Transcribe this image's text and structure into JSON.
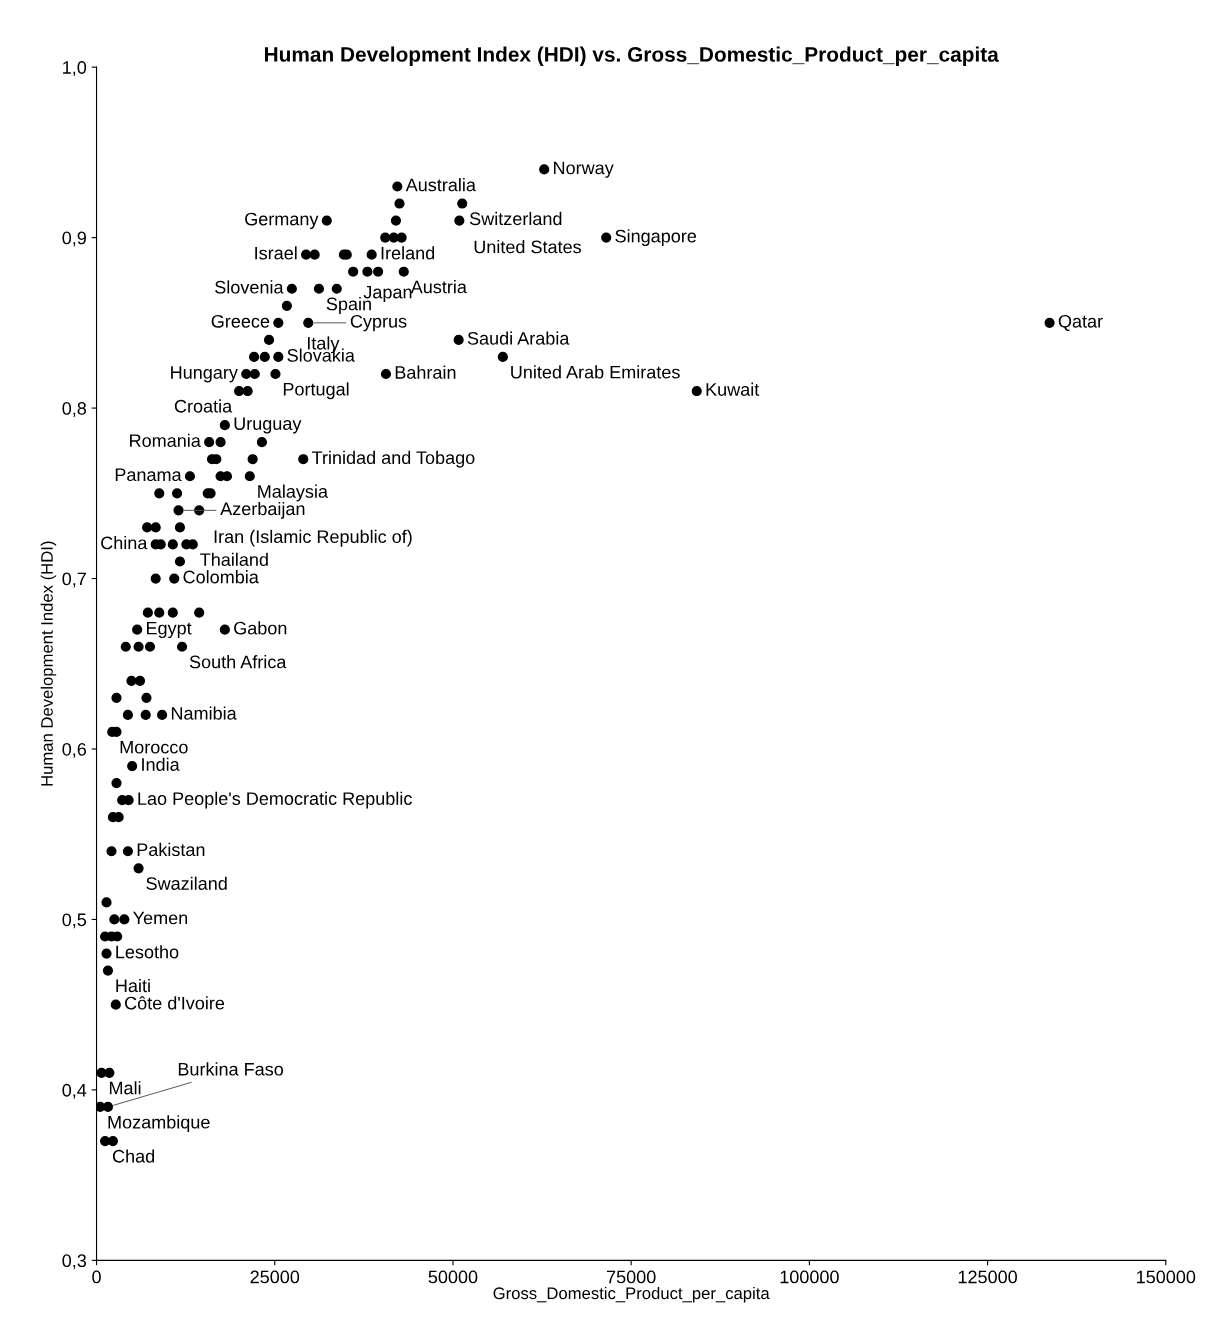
{
  "chart_data": {
    "type": "scatter",
    "title": "Human Development Index (HDI) vs. Gross_Domestic_Product_per_capita",
    "xlabel": "Gross_Domestic_Product_per_capita",
    "ylabel": "Human Development Index (HDI)",
    "series": [
      {
        "color": "#000000",
        "x": [
          62800,
          42200,
          42500,
          51300,
          32300,
          42000,
          50900,
          40500,
          41700,
          42800,
          71500,
          29400,
          30600,
          34700,
          35100,
          38600,
          36000,
          38000,
          39500,
          43100,
          27400,
          31200,
          33700,
          26700,
          25500,
          29700,
          133700,
          24200,
          50800,
          22100,
          23600,
          25500,
          57000,
          21000,
          22200,
          25100,
          40600,
          20000,
          21200,
          84200,
          18000,
          15800,
          17400,
          23200,
          16200,
          16800,
          21900,
          29000,
          13100,
          17400,
          18300,
          21500,
          8800,
          11300,
          15600,
          16000,
          11500,
          14400,
          7100,
          8300,
          11700,
          8300,
          9000,
          10700,
          12600,
          13500,
          11700,
          8300,
          10900,
          7200,
          8800,
          10700,
          14400,
          5700,
          18000,
          4100,
          5900,
          7500,
          12000,
          4900,
          6100,
          2800,
          7000,
          4400,
          6900,
          9200,
          2200,
          2800,
          5000,
          2800,
          3600,
          4500,
          2300,
          3100,
          2100,
          4400,
          5900,
          1400,
          2500,
          3900,
          1200,
          2100,
          2900,
          1400,
          1600,
          2700,
          700,
          1800,
          500,
          1600,
          1200,
          2300
        ],
        "values": [
          0.94,
          0.93,
          0.92,
          0.92,
          0.91,
          0.91,
          0.91,
          0.9,
          0.9,
          0.9,
          0.9,
          0.89,
          0.89,
          0.89,
          0.89,
          0.89,
          0.88,
          0.88,
          0.88,
          0.88,
          0.87,
          0.87,
          0.87,
          0.86,
          0.85,
          0.85,
          0.85,
          0.84,
          0.84,
          0.83,
          0.83,
          0.83,
          0.83,
          0.82,
          0.82,
          0.82,
          0.82,
          0.81,
          0.81,
          0.81,
          0.79,
          0.78,
          0.78,
          0.78,
          0.77,
          0.77,
          0.77,
          0.77,
          0.76,
          0.76,
          0.76,
          0.76,
          0.75,
          0.75,
          0.75,
          0.75,
          0.74,
          0.74,
          0.73,
          0.73,
          0.73,
          0.72,
          0.72,
          0.72,
          0.72,
          0.72,
          0.71,
          0.7,
          0.7,
          0.68,
          0.68,
          0.68,
          0.68,
          0.67,
          0.67,
          0.66,
          0.66,
          0.66,
          0.66,
          0.64,
          0.64,
          0.63,
          0.63,
          0.62,
          0.62,
          0.62,
          0.61,
          0.61,
          0.59,
          0.58,
          0.57,
          0.57,
          0.56,
          0.56,
          0.54,
          0.54,
          0.53,
          0.51,
          0.5,
          0.5,
          0.49,
          0.49,
          0.49,
          0.48,
          0.47,
          0.45,
          0.41,
          0.41,
          0.39,
          0.39,
          0.37,
          0.37
        ]
      }
    ],
    "marker": "circle",
    "grid": false,
    "xlim": [
      0,
      150000
    ],
    "xticks": [
      0,
      25000,
      50000,
      75000,
      100000,
      125000,
      150000
    ],
    "ylim": [
      0.3,
      1.0
    ],
    "yticks": [
      {
        "value": 0.3,
        "label": "0,3"
      },
      {
        "value": 0.4,
        "label": "0,4"
      },
      {
        "value": 0.5,
        "label": "0,5"
      },
      {
        "value": 0.6,
        "label": "0,6"
      },
      {
        "value": 0.7,
        "label": "0,7"
      },
      {
        "value": 0.8,
        "label": "0,8"
      },
      {
        "value": 0.9,
        "label": "0,9"
      },
      {
        "value": 1.0,
        "label": "1,0"
      }
    ],
    "annotations": [
      {
        "text": "Norway",
        "x": 62800,
        "y": 0.94
      },
      {
        "text": "Australia",
        "x": 42200,
        "y": 0.93
      },
      {
        "text": "Switzerland",
        "x": 51300,
        "y": 0.92
      },
      {
        "text": "Germany",
        "x": 32300,
        "y": 0.91
      },
      {
        "text": "United States",
        "x": 50900,
        "y": 0.91
      },
      {
        "text": "Singapore",
        "x": 71500,
        "y": 0.9
      },
      {
        "text": "Israel",
        "x": 29400,
        "y": 0.89
      },
      {
        "text": "Japan",
        "x": 34700,
        "y": 0.89
      },
      {
        "text": "Ireland",
        "x": 38600,
        "y": 0.89
      },
      {
        "text": "Austria",
        "x": 43100,
        "y": 0.88
      },
      {
        "text": "Slovenia",
        "x": 27400,
        "y": 0.87
      },
      {
        "text": "Spain",
        "x": 31200,
        "y": 0.87
      },
      {
        "text": "Italy",
        "x": 26700,
        "y": 0.86
      },
      {
        "text": "Greece",
        "x": 25500,
        "y": 0.85
      },
      {
        "text": "Cyprus",
        "x": 29700,
        "y": 0.85
      },
      {
        "text": "Qatar",
        "x": 133700,
        "y": 0.85
      },
      {
        "text": "Saudi Arabia",
        "x": 50800,
        "y": 0.84
      },
      {
        "text": "Slovakia",
        "x": 25500,
        "y": 0.83
      },
      {
        "text": "United Arab Emirates",
        "x": 57000,
        "y": 0.83
      },
      {
        "text": "Hungary",
        "x": 21000,
        "y": 0.82
      },
      {
        "text": "Portugal",
        "x": 25100,
        "y": 0.82
      },
      {
        "text": "Bahrain",
        "x": 40600,
        "y": 0.82
      },
      {
        "text": "Croatia",
        "x": 20000,
        "y": 0.81
      },
      {
        "text": "Kuwait",
        "x": 84200,
        "y": 0.81
      },
      {
        "text": "Uruguay",
        "x": 18000,
        "y": 0.79
      },
      {
        "text": "Romania",
        "x": 15800,
        "y": 0.78
      },
      {
        "text": "Trinidad and Tobago",
        "x": 29000,
        "y": 0.77
      },
      {
        "text": "Panama",
        "x": 13100,
        "y": 0.76
      },
      {
        "text": "Malaysia",
        "x": 21500,
        "y": 0.76
      },
      {
        "text": "Azerbaijan",
        "x": 11500,
        "y": 0.74
      },
      {
        "text": "Iran (Islamic Republic of)",
        "x": 14400,
        "y": 0.74
      },
      {
        "text": "China",
        "x": 8300,
        "y": 0.72
      },
      {
        "text": "Thailand",
        "x": 13500,
        "y": 0.72
      },
      {
        "text": "Colombia",
        "x": 10900,
        "y": 0.7
      },
      {
        "text": "Egypt",
        "x": 5700,
        "y": 0.67
      },
      {
        "text": "Gabon",
        "x": 18000,
        "y": 0.67
      },
      {
        "text": "South Africa",
        "x": 12000,
        "y": 0.66
      },
      {
        "text": "Namibia",
        "x": 9200,
        "y": 0.62
      },
      {
        "text": "Morocco",
        "x": 2200,
        "y": 0.61
      },
      {
        "text": "India",
        "x": 5000,
        "y": 0.59
      },
      {
        "text": "Lao People's Democratic Republic",
        "x": 4500,
        "y": 0.57
      },
      {
        "text": "Pakistan",
        "x": 4400,
        "y": 0.54
      },
      {
        "text": "Swaziland",
        "x": 5900,
        "y": 0.53
      },
      {
        "text": "Yemen",
        "x": 3900,
        "y": 0.5
      },
      {
        "text": "Lesotho",
        "x": 1400,
        "y": 0.48
      },
      {
        "text": "Haiti",
        "x": 1600,
        "y": 0.47
      },
      {
        "text": "Côte d'Ivoire",
        "x": 2700,
        "y": 0.45
      },
      {
        "text": "Mali",
        "x": 700,
        "y": 0.41
      },
      {
        "text": "Mozambique",
        "x": 500,
        "y": 0.39
      },
      {
        "text": "Burkina Faso",
        "x": 1600,
        "y": 0.39
      },
      {
        "text": "Chad",
        "x": 1200,
        "y": 0.37
      }
    ]
  }
}
